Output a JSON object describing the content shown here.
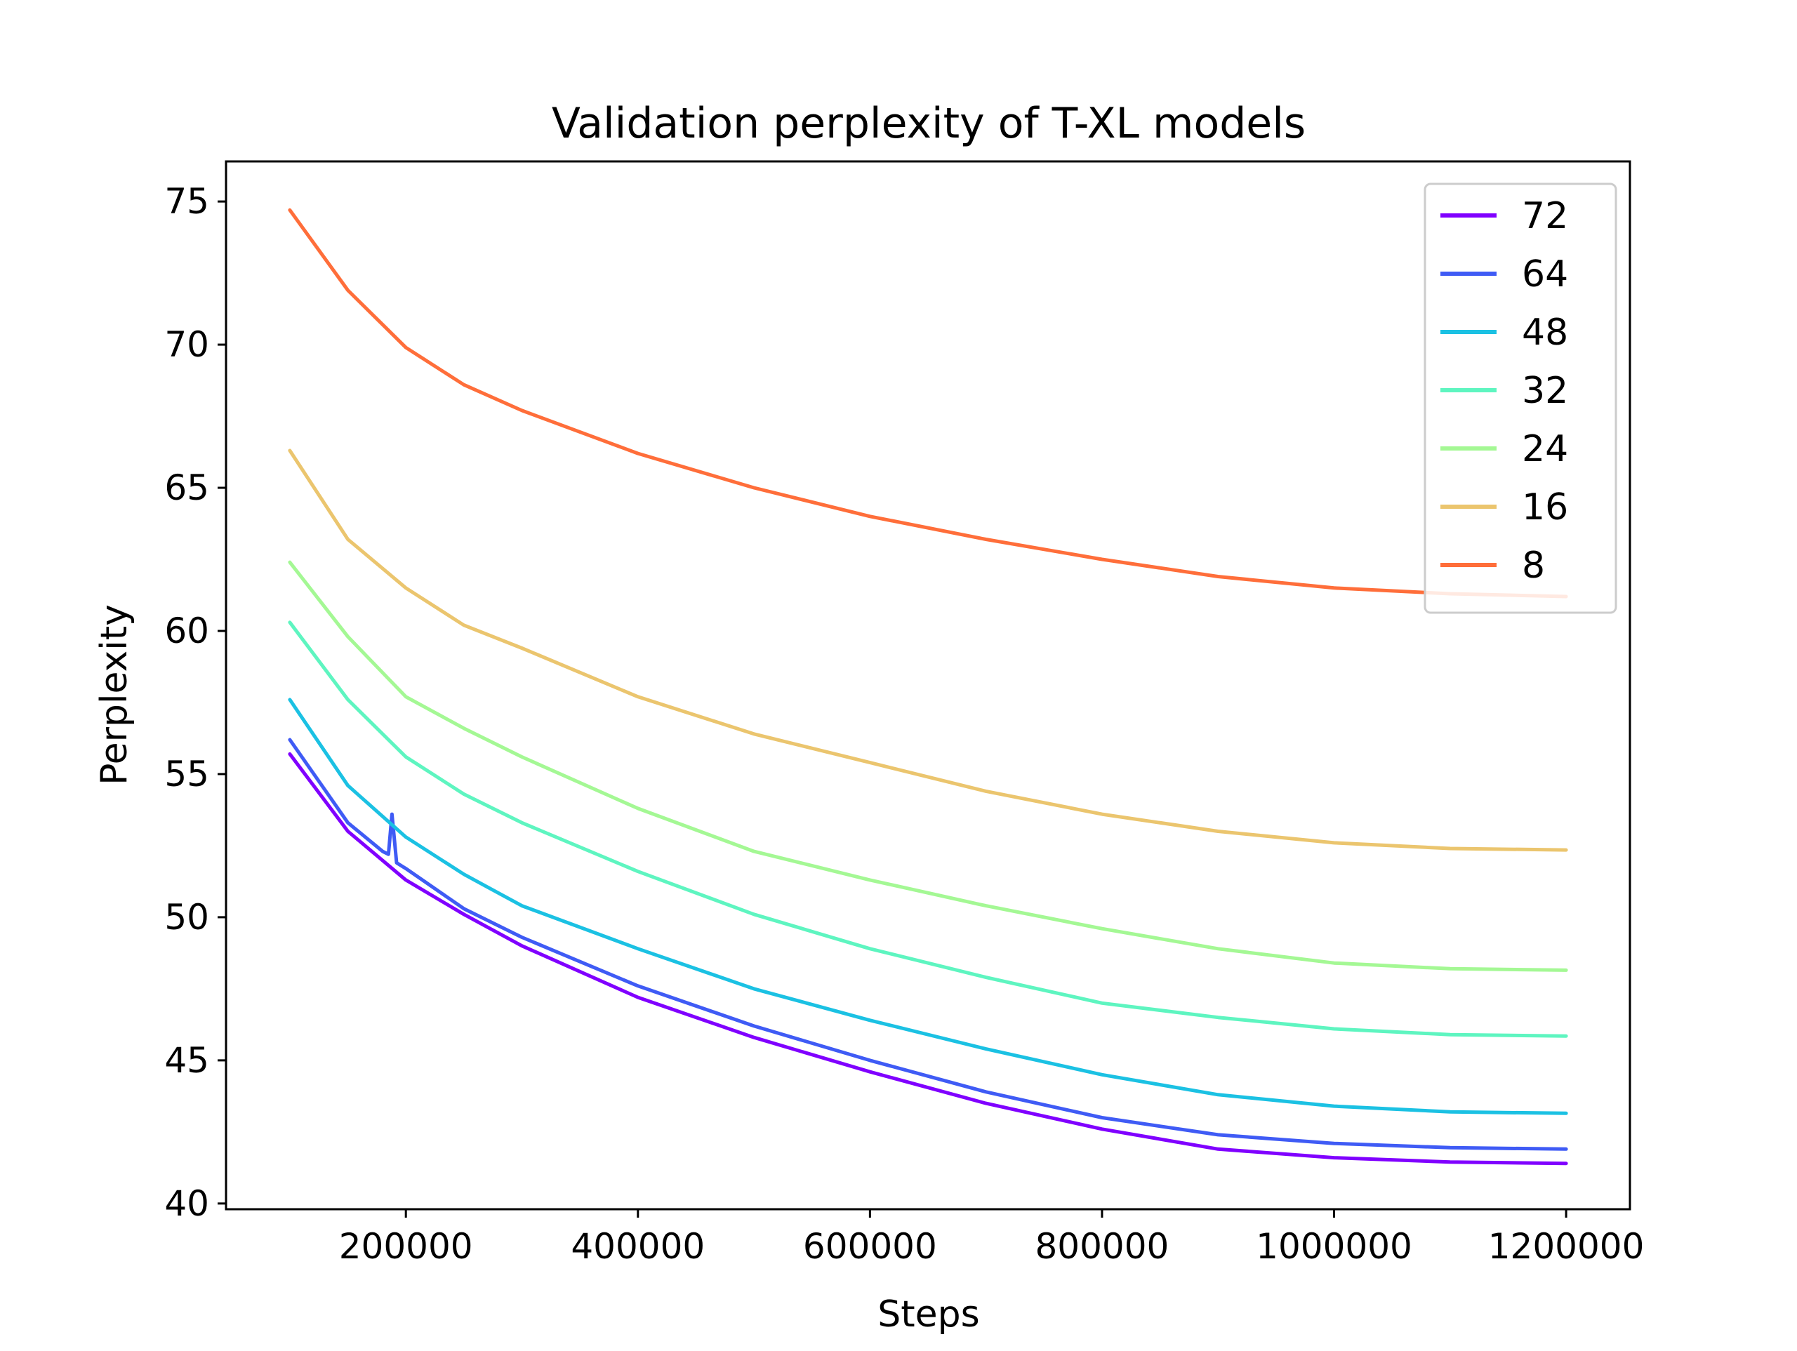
{
  "chart_data": {
    "type": "line",
    "title": "Validation perplexity of T-XL models",
    "xlabel": "Steps",
    "ylabel": "Perplexity",
    "xlim": [
      45000,
      1255000
    ],
    "ylim": [
      39.8,
      76.4
    ],
    "xticks": [
      200000,
      400000,
      600000,
      800000,
      1000000,
      1200000
    ],
    "xtick_labels": [
      "200000",
      "400000",
      "600000",
      "800000",
      "1000000",
      "1200000"
    ],
    "yticks": [
      40,
      45,
      50,
      55,
      60,
      65,
      70,
      75
    ],
    "ytick_labels": [
      "40",
      "45",
      "50",
      "55",
      "60",
      "65",
      "70",
      "75"
    ],
    "grid": false,
    "legend_position": "top-right",
    "series": [
      {
        "name": "72",
        "color": "#8000ff",
        "x": [
          100000,
          150000,
          200000,
          250000,
          300000,
          400000,
          500000,
          600000,
          700000,
          800000,
          900000,
          1000000,
          1100000,
          1200000
        ],
        "y": [
          55.7,
          53.0,
          51.3,
          50.1,
          49.0,
          47.2,
          45.8,
          44.6,
          43.5,
          42.6,
          41.9,
          41.6,
          41.45,
          41.4
        ]
      },
      {
        "name": "64",
        "color": "#3f5bf5",
        "x": [
          100000,
          150000,
          180000,
          185000,
          188000,
          192000,
          200000,
          250000,
          300000,
          400000,
          500000,
          600000,
          700000,
          800000,
          900000,
          1000000,
          1100000,
          1200000
        ],
        "y": [
          56.2,
          53.3,
          52.3,
          52.2,
          53.6,
          51.9,
          51.7,
          50.3,
          49.3,
          47.6,
          46.2,
          45.0,
          43.9,
          43.0,
          42.4,
          42.1,
          41.95,
          41.9
        ]
      },
      {
        "name": "48",
        "color": "#1bc1e3",
        "x": [
          100000,
          150000,
          200000,
          250000,
          300000,
          400000,
          500000,
          600000,
          700000,
          800000,
          900000,
          1000000,
          1100000,
          1200000
        ],
        "y": [
          57.6,
          54.6,
          52.8,
          51.5,
          50.4,
          48.9,
          47.5,
          46.4,
          45.4,
          44.5,
          43.8,
          43.4,
          43.2,
          43.15
        ]
      },
      {
        "name": "32",
        "color": "#5ef5c0",
        "x": [
          100000,
          150000,
          200000,
          250000,
          300000,
          400000,
          500000,
          600000,
          700000,
          800000,
          900000,
          1000000,
          1100000,
          1200000
        ],
        "y": [
          60.3,
          57.6,
          55.6,
          54.3,
          53.3,
          51.6,
          50.1,
          48.9,
          47.9,
          47.0,
          46.5,
          46.1,
          45.9,
          45.85
        ]
      },
      {
        "name": "24",
        "color": "#a4f894",
        "x": [
          100000,
          150000,
          200000,
          250000,
          300000,
          400000,
          500000,
          600000,
          700000,
          800000,
          900000,
          1000000,
          1100000,
          1200000
        ],
        "y": [
          62.4,
          59.8,
          57.7,
          56.6,
          55.6,
          53.8,
          52.3,
          51.3,
          50.4,
          49.6,
          48.9,
          48.4,
          48.2,
          48.15
        ]
      },
      {
        "name": "16",
        "color": "#ebc56e",
        "x": [
          100000,
          150000,
          200000,
          250000,
          300000,
          400000,
          500000,
          600000,
          700000,
          800000,
          900000,
          1000000,
          1100000,
          1200000
        ],
        "y": [
          66.3,
          63.2,
          61.5,
          60.2,
          59.4,
          57.7,
          56.4,
          55.4,
          54.4,
          53.6,
          53.0,
          52.6,
          52.4,
          52.35
        ]
      },
      {
        "name": "8",
        "color": "#ff6e3a",
        "x": [
          100000,
          150000,
          200000,
          250000,
          300000,
          400000,
          500000,
          600000,
          700000,
          800000,
          900000,
          1000000,
          1100000,
          1200000
        ],
        "y": [
          74.7,
          71.9,
          69.9,
          68.6,
          67.7,
          66.2,
          65.0,
          64.0,
          63.2,
          62.5,
          61.9,
          61.5,
          61.3,
          61.2
        ]
      }
    ]
  }
}
